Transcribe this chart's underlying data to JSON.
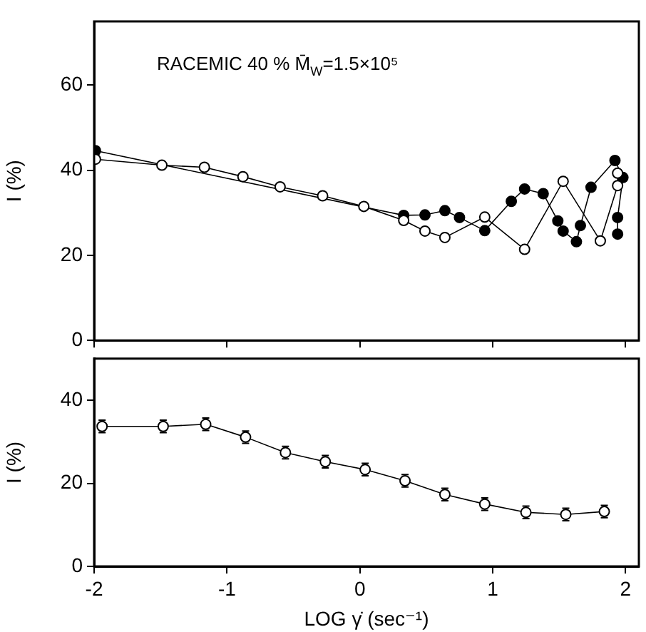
{
  "chart_data": [
    {
      "type": "line",
      "annotations": [
        "RACEMIC 40 % M̄$_{W}$=1.5×10⁵"
      ],
      "ylabel": "I (%)",
      "xlim": [
        -2,
        2.1
      ],
      "xticks": [
        -2,
        -1,
        0,
        1,
        2
      ],
      "ylim": [
        0,
        75
      ],
      "yticks": [
        0,
        20,
        40,
        60
      ],
      "tick_labels": "y",
      "grid": false,
      "legend": false,
      "marker": "circle",
      "series": [
        {
          "color": "#000000",
          "x": [
            -1.99,
            -1.49,
            -1.17,
            -0.88,
            -0.6,
            -0.28,
            0.03,
            0.33,
            0.49,
            0.64,
            0.94,
            1.24,
            1.53,
            1.81,
            1.94,
            1.94
          ],
          "values": [
            42.6,
            41.2,
            40.7,
            38.5,
            36.1,
            34,
            31.5,
            28.2,
            25.7,
            24.2,
            29,
            21.4,
            37.4,
            23.4,
            36.4,
            39.3
          ]
        },
        {
          "color": "#000000",
          "x": [
            -1.99,
            0.33,
            0.49,
            0.64,
            0.75,
            0.94,
            1.14,
            1.24,
            1.38,
            1.49,
            1.53,
            1.63,
            1.66,
            1.74,
            1.92,
            1.98,
            1.94,
            1.94
          ],
          "values": [
            44.6,
            29.4,
            29.5,
            30.5,
            28.9,
            25.8,
            32.7,
            35.6,
            34.5,
            28.1,
            25.7,
            23.2,
            27,
            36,
            42.3,
            38.3,
            28.9,
            25
          ]
        }
      ]
    },
    {
      "type": "line",
      "xlabel": "LOG γ̇ (sec⁻¹)",
      "ylabel": "I (%)",
      "xlim": [
        -2,
        2.1
      ],
      "xticks": [
        -2,
        -1,
        0,
        1,
        2
      ],
      "ylim": [
        0,
        50
      ],
      "yticks": [
        0,
        20,
        40
      ],
      "grid": false,
      "legend": false,
      "marker": "circle",
      "series": [
        {
          "color": "#000000",
          "x": [
            -1.94,
            -1.48,
            -1.16,
            -0.86,
            -0.56,
            -0.26,
            0.04,
            0.34,
            0.64,
            0.94,
            1.25,
            1.55,
            1.84
          ],
          "values": [
            33.7,
            33.7,
            34.2,
            31.1,
            27.4,
            25.2,
            23.3,
            20.6,
            17.3,
            15,
            13,
            12.5,
            13.2
          ],
          "errors": [
            1.5,
            1.5,
            1.5,
            1.5,
            1.5,
            1.5,
            1.5,
            1.5,
            1.5,
            1.5,
            1.5,
            1.5,
            1.5
          ]
        }
      ]
    }
  ]
}
